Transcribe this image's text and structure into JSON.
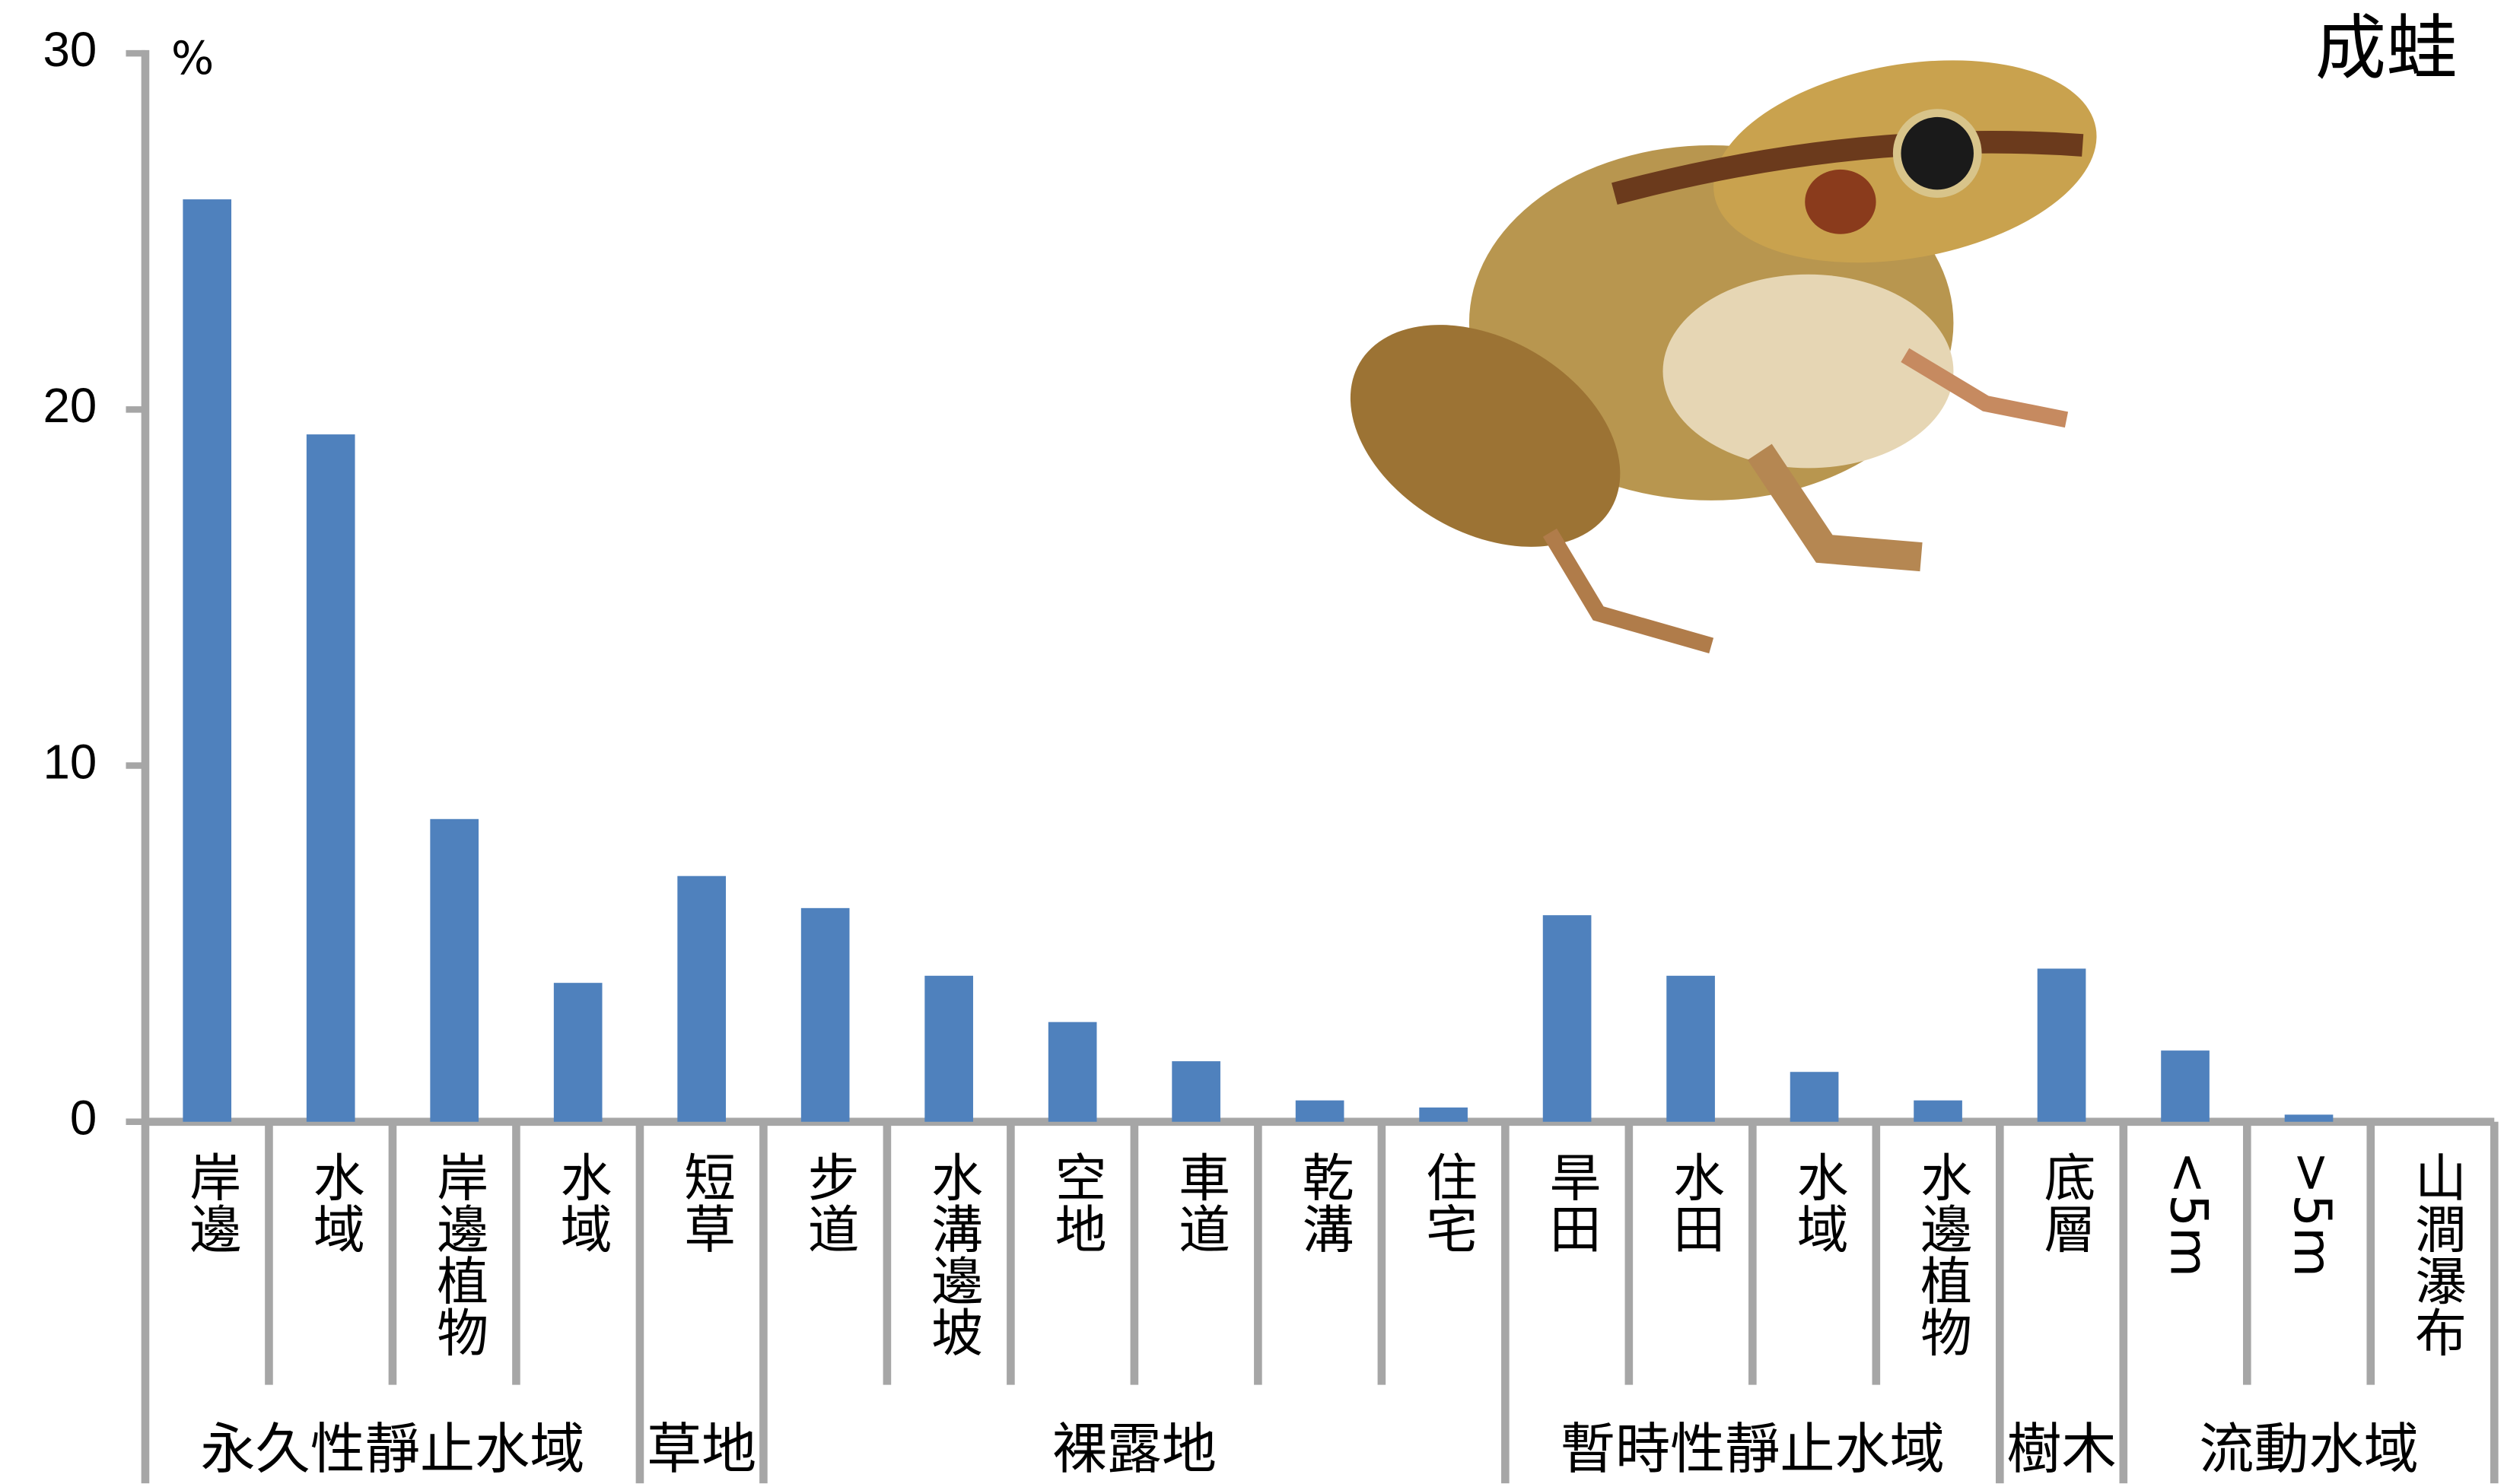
{
  "chart_data": {
    "type": "bar",
    "title": "成蛙",
    "y_unit": "%",
    "color": "#4f81bd",
    "ylim": [
      0,
      30
    ],
    "yticks": [
      0,
      10,
      20,
      30
    ],
    "groups": [
      {
        "name": "永久性靜止水域",
        "categories": [
          "岸邊",
          "水域",
          "岸邊植物",
          "水域"
        ],
        "values": [
          25.9,
          19.3,
          8.5,
          3.9
        ]
      },
      {
        "name": "草地",
        "categories": [
          "短草"
        ],
        "values": [
          6.9
        ]
      },
      {
        "name": "裸露地",
        "categories": [
          "步道",
          "水溝邊坡",
          "空地",
          "車道",
          "乾溝",
          "住宅"
        ],
        "values": [
          6.0,
          4.1,
          2.8,
          1.7,
          0.6,
          0.4
        ]
      },
      {
        "name": "暫時性靜止水域",
        "categories": [
          "旱田",
          "水田",
          "水域",
          "水邊植物"
        ],
        "values": [
          5.8,
          4.1,
          1.4,
          0.6
        ]
      },
      {
        "name": "樹木",
        "categories": [
          "底層"
        ],
        "values": [
          4.3
        ]
      },
      {
        "name": "流動水域",
        "categories": [
          "<5m",
          ">5m",
          "山澗瀑布"
        ],
        "values": [
          2.0,
          0.2,
          0
        ]
      }
    ]
  }
}
